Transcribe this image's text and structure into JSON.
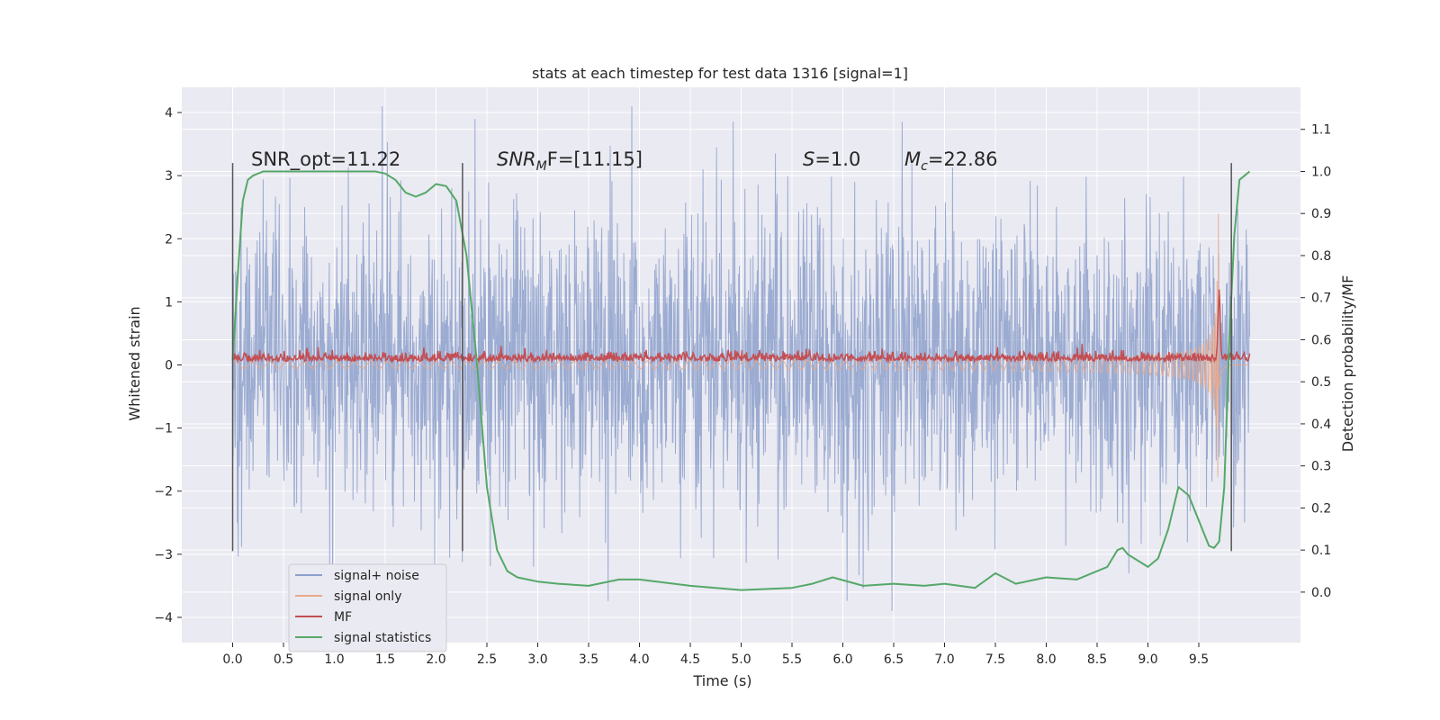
{
  "chart_data": {
    "type": "line",
    "title": "stats at each timestep for test data 1316 [signal=1]",
    "xlabel": "Time (s)",
    "ylabel": "Whitened strain",
    "y2label": "Detection probability/MF",
    "xlim": [
      -0.5,
      10.5
    ],
    "ylim": [
      -4.4,
      4.4
    ],
    "y2lim": [
      -0.12,
      1.2
    ],
    "xticks": [
      "0.0",
      "0.5",
      "1.0",
      "1.5",
      "2.0",
      "2.5",
      "3.0",
      "3.5",
      "4.0",
      "4.5",
      "5.0",
      "5.5",
      "6.0",
      "6.5",
      "7.0",
      "7.5",
      "8.0",
      "8.5",
      "9.0",
      "9.5"
    ],
    "yticks": [
      -4,
      -3,
      -2,
      -1,
      0,
      1,
      2,
      3,
      4
    ],
    "y2ticks": [
      "0.0",
      "0.1",
      "0.2",
      "0.3",
      "0.4",
      "0.5",
      "0.6",
      "0.7",
      "0.8",
      "0.9",
      "1.0",
      "1.1"
    ],
    "grid": true,
    "legend_position": "lower-left",
    "colors": {
      "background": "#eaeaf2",
      "grid": "#ffffff",
      "signal_noise": "#8da0cb",
      "signal_only": "#e9a88a",
      "mf": "#c44e52",
      "statistics": "#55a868",
      "markers": "#555555"
    },
    "annotations": {
      "snr_opt": "SNR_opt=11.22",
      "snr_mf_base": "SNR",
      "snr_mf_sub": "M",
      "snr_mf_rest": "F=[11.15]",
      "s_base": "S",
      "s_rest": "=1.0",
      "mc_base": "M",
      "mc_sub": "c",
      "mc_rest": "=22.86"
    },
    "vertical_markers": [
      {
        "x": 0.0,
        "y_top": 3.2,
        "y_bottom": -2.95
      },
      {
        "x": 2.26,
        "y_top": 3.2,
        "y_bottom": -2.95
      },
      {
        "x": 9.82,
        "y_top": 3.2,
        "y_bottom": -2.95
      }
    ],
    "series": [
      {
        "name": "signal+ noise",
        "type": "noise",
        "t_start": 0.0,
        "t_end": 10.0,
        "axis": "left",
        "amplitude": 1.2
      },
      {
        "name": "signal only",
        "type": "chirp",
        "t_start": 0.0,
        "t_end": 10.0,
        "axis": "left",
        "merger": 9.7,
        "peak": 2.4
      },
      {
        "name": "MF",
        "type": "mf",
        "axis": "left",
        "baseline": 0.1,
        "peak_x": 9.7,
        "peak": 1.0
      },
      {
        "name": "signal statistics",
        "type": "line",
        "axis": "right",
        "x": [
          0.0,
          0.05,
          0.1,
          0.15,
          0.2,
          0.3,
          0.5,
          0.8,
          1.0,
          1.2,
          1.4,
          1.5,
          1.6,
          1.7,
          1.8,
          1.9,
          2.0,
          2.1,
          2.2,
          2.3,
          2.4,
          2.5,
          2.6,
          2.7,
          2.8,
          2.9,
          3.0,
          3.2,
          3.5,
          3.8,
          4.0,
          4.5,
          5.0,
          5.5,
          5.7,
          5.9,
          6.2,
          6.5,
          6.8,
          7.0,
          7.3,
          7.5,
          7.7,
          8.0,
          8.3,
          8.6,
          8.7,
          8.75,
          8.8,
          9.0,
          9.1,
          9.2,
          9.3,
          9.4,
          9.5,
          9.6,
          9.65,
          9.7,
          9.75,
          9.8,
          9.85,
          9.9,
          9.95,
          10.0
        ],
        "y": [
          0.55,
          0.75,
          0.93,
          0.98,
          0.99,
          1.0,
          1.0,
          1.0,
          1.0,
          1.0,
          1.0,
          0.995,
          0.98,
          0.95,
          0.94,
          0.95,
          0.97,
          0.965,
          0.93,
          0.8,
          0.55,
          0.25,
          0.1,
          0.05,
          0.035,
          0.03,
          0.025,
          0.02,
          0.015,
          0.03,
          0.03,
          0.015,
          0.005,
          0.01,
          0.02,
          0.035,
          0.015,
          0.02,
          0.015,
          0.02,
          0.01,
          0.045,
          0.02,
          0.035,
          0.03,
          0.06,
          0.1,
          0.105,
          0.09,
          0.06,
          0.08,
          0.15,
          0.25,
          0.23,
          0.17,
          0.11,
          0.105,
          0.12,
          0.25,
          0.6,
          0.85,
          0.98,
          0.99,
          1.0
        ]
      }
    ]
  }
}
